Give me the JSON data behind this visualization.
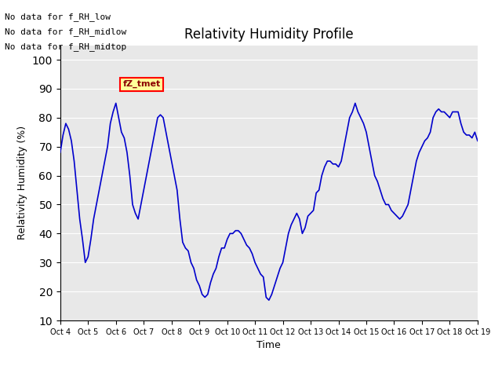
{
  "title": "Relativity Humidity Profile",
  "ylabel": "Relativity Humidity (%)",
  "xlabel": "Time",
  "ylim": [
    10,
    105
  ],
  "yticks": [
    10,
    20,
    30,
    40,
    50,
    60,
    70,
    80,
    90,
    100
  ],
  "line_color": "#0000CC",
  "line_color2": "#8888FF",
  "annotations": [
    "No data for f_RH_low",
    "No data for f_RH_midlow",
    "No data for f_RH_midtop"
  ],
  "legend_box_text": "fZ_tmet",
  "xtick_labels": [
    "Oct 4",
    "Oct 5",
    "Oct 6",
    "Oct 7",
    "Oct 8",
    "Oct 9",
    "Oct 10",
    "Oct 11",
    "Oct 12",
    "Oct 13",
    "Oct 14",
    "Oct 15",
    "Oct 16",
    "Oct 17",
    "Oct 18",
    "Oct 19"
  ],
  "x_values": [
    0,
    0.1,
    0.2,
    0.3,
    0.4,
    0.5,
    0.6,
    0.7,
    0.8,
    0.9,
    1.0,
    1.1,
    1.2,
    1.3,
    1.4,
    1.5,
    1.6,
    1.7,
    1.8,
    1.9,
    2.0,
    2.1,
    2.2,
    2.3,
    2.4,
    2.5,
    2.6,
    2.7,
    2.8,
    2.9,
    3.0,
    3.1,
    3.2,
    3.3,
    3.4,
    3.5,
    3.6,
    3.7,
    3.8,
    3.9,
    4.0,
    4.1,
    4.2,
    4.3,
    4.4,
    4.5,
    4.6,
    4.7,
    4.8,
    4.9,
    5.0,
    5.1,
    5.2,
    5.3,
    5.4,
    5.5,
    5.6,
    5.7,
    5.8,
    5.9,
    6.0,
    6.1,
    6.2,
    6.3,
    6.4,
    6.5,
    6.6,
    6.7,
    6.8,
    6.9,
    7.0,
    7.1,
    7.2,
    7.3,
    7.4,
    7.5,
    7.6,
    7.7,
    7.8,
    7.9,
    8.0,
    8.1,
    8.2,
    8.3,
    8.4,
    8.5,
    8.6,
    8.7,
    8.8,
    8.9,
    9.0,
    9.1,
    9.2,
    9.3,
    9.4,
    9.5,
    9.6,
    9.7,
    9.8,
    9.9,
    10.0,
    10.1,
    10.2,
    10.3,
    10.4,
    10.5,
    10.6,
    10.7,
    10.8,
    10.9,
    11.0,
    11.1,
    11.2,
    11.3,
    11.4,
    11.5,
    11.6,
    11.7,
    11.8,
    11.9,
    12.0,
    12.1,
    12.2,
    12.3,
    12.4,
    12.5,
    12.6,
    12.7,
    12.8,
    12.9,
    13.0,
    13.1,
    13.2,
    13.3,
    13.4,
    13.5,
    13.6,
    13.7,
    13.8,
    13.9,
    14.0,
    14.1,
    14.2,
    14.3,
    14.4,
    14.5,
    14.6,
    14.7,
    14.8,
    14.9,
    15.0
  ],
  "y_values": [
    68,
    74,
    78,
    76,
    72,
    65,
    55,
    45,
    38,
    30,
    32,
    38,
    45,
    50,
    55,
    60,
    65,
    70,
    78,
    82,
    85,
    80,
    75,
    73,
    68,
    60,
    50,
    47,
    45,
    50,
    55,
    60,
    65,
    70,
    75,
    80,
    81,
    80,
    75,
    70,
    65,
    60,
    55,
    45,
    37,
    35,
    34,
    30,
    28,
    24,
    22,
    19,
    18,
    19,
    23,
    26,
    28,
    32,
    35,
    35,
    38,
    40,
    40,
    41,
    41,
    40,
    38,
    36,
    35,
    33,
    30,
    28,
    26,
    25,
    18,
    17,
    19,
    22,
    25,
    28,
    30,
    35,
    40,
    43,
    45,
    47,
    45,
    40,
    42,
    46,
    47,
    48,
    54,
    55,
    60,
    63,
    65,
    65,
    64,
    64,
    63,
    65,
    70,
    75,
    80,
    82,
    85,
    82,
    80,
    78,
    75,
    70,
    65,
    60,
    58,
    55,
    52,
    50,
    50,
    48,
    47,
    46,
    45,
    46,
    48,
    50,
    55,
    60,
    65,
    68,
    70,
    72,
    73,
    75,
    80,
    82,
    83,
    82,
    82,
    81,
    80,
    82,
    82,
    82,
    78,
    75,
    74,
    74,
    73,
    75,
    72
  ]
}
